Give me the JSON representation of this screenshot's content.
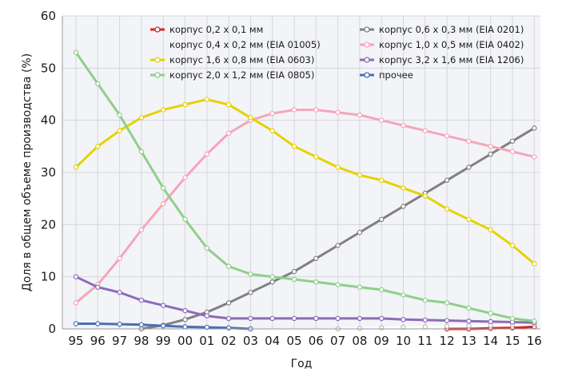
{
  "chart_data": {
    "type": "line",
    "xlabel": "Год",
    "ylabel": "Доля в общем объеме производства (%)",
    "ylim": [
      0,
      60
    ],
    "yticks": [
      0,
      10,
      20,
      30,
      40,
      50,
      60
    ],
    "categories": [
      "95",
      "96",
      "97",
      "98",
      "99",
      "00",
      "01",
      "02",
      "03",
      "04",
      "05",
      "06",
      "07",
      "08",
      "09",
      "10",
      "11",
      "12",
      "13",
      "14",
      "15",
      "16"
    ],
    "grid": true,
    "legend_position": "top-right",
    "series": [
      {
        "name": "корпус 0,2 x 0,1 мм",
        "color": "#d62728",
        "values": [
          null,
          null,
          null,
          null,
          null,
          null,
          null,
          null,
          null,
          null,
          null,
          null,
          null,
          null,
          null,
          null,
          null,
          0,
          0,
          0.1,
          0.2,
          0.4
        ]
      },
      {
        "name": "корпус 0,6 x 0,3 мм (EIA 0201)",
        "color": "#808080",
        "values": [
          null,
          null,
          null,
          0,
          0.7,
          1.8,
          3.2,
          5,
          7,
          9,
          11,
          13.5,
          16,
          18.5,
          21,
          23.5,
          26,
          28.5,
          31,
          33.5,
          36,
          38.5
        ]
      },
      {
        "name": "корпус 0,4 x 0,2 мм (EIA 01005)",
        "color": "#ffffff",
        "values": [
          null,
          null,
          null,
          null,
          null,
          null,
          null,
          null,
          null,
          null,
          null,
          null,
          0,
          0.1,
          0.2,
          0.3,
          0.4,
          0.5,
          0.6,
          0.7,
          0.8,
          0.9
        ]
      },
      {
        "name": "корпус 1,0 x 0,5 мм (EIA 0402)",
        "color": "#f4a6b8",
        "values": [
          5,
          8.5,
          13.5,
          19,
          24,
          29,
          33.5,
          37.5,
          40,
          41.3,
          42,
          42,
          41.5,
          41,
          40,
          39,
          38,
          37,
          36,
          35,
          34,
          33
        ]
      },
      {
        "name": "корпус 1,6 x 0,8 мм (EIA 0603)",
        "color": "#e6d200",
        "values": [
          31,
          35,
          38,
          40.5,
          42,
          43,
          44,
          43,
          40.5,
          38,
          35,
          33,
          31,
          29.5,
          28.5,
          27,
          25.5,
          23,
          21,
          19,
          16,
          12.5
        ]
      },
      {
        "name": "корпус 3,2 x 1,6 мм (EIA 1206)",
        "color": "#8e6bb8",
        "values": [
          10,
          8,
          7,
          5.5,
          4.5,
          3.5,
          2.5,
          2,
          2,
          2,
          2,
          2,
          2,
          2,
          2,
          1.8,
          1.7,
          1.6,
          1.5,
          1.4,
          1.3,
          1.2
        ]
      },
      {
        "name": "корпус 2,0 x 1,2 мм (EIA 0805)",
        "color": "#8fcf8a",
        "values": [
          53,
          47,
          41,
          34,
          27,
          21,
          15.5,
          12,
          10.5,
          10,
          9.5,
          9,
          8.5,
          8,
          7.5,
          6.5,
          5.5,
          5,
          4,
          3,
          2,
          1.5
        ]
      },
      {
        "name": "прочее",
        "color": "#4a6fb5",
        "values": [
          1,
          1,
          0.9,
          0.8,
          0.6,
          0.4,
          0.3,
          0.2,
          0,
          null,
          null,
          null,
          null,
          null,
          null,
          null,
          null,
          null,
          null,
          null,
          null,
          null
        ]
      }
    ]
  }
}
